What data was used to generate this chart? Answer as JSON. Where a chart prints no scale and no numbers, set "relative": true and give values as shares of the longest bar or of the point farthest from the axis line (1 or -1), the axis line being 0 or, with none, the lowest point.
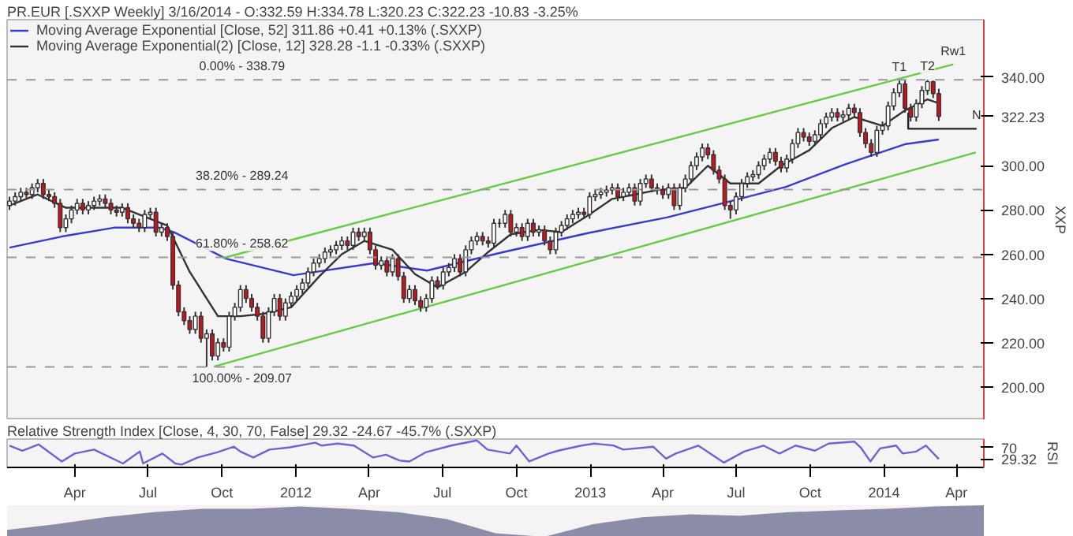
{
  "chart_data": [
    {
      "type": "candlestick",
      "title": "PR.EUR [.SXXP  Weekly] 3/16/2014 - O:332.59 H:334.78 L:320.23 C:322.23 -10.83 -3.25%",
      "ylabel": "XXP",
      "legend": "top left",
      "tick_labels": "y",
      "xlim": [
        "2011-01-07",
        "2014-05-05"
      ],
      "ylim": [
        185,
        366
      ],
      "yticks": [
        {
          "value": 200,
          "label": "200.00"
        },
        {
          "value": 220,
          "label": "220.00"
        },
        {
          "value": 240,
          "label": "240.00"
        },
        {
          "value": 260,
          "label": "260.00"
        },
        {
          "value": 280,
          "label": "280.00"
        },
        {
          "value": 300,
          "label": "300.00"
        },
        {
          "value": 322.23,
          "label": "322.23"
        },
        {
          "value": 340,
          "label": "340.00"
        }
      ],
      "x": [
        "2011-01-10",
        "2011-01-17",
        "2011-01-24",
        "2011-01-31",
        "2011-02-07",
        "2011-02-14",
        "2011-02-21",
        "2011-02-28",
        "2011-03-07",
        "2011-03-14",
        "2011-03-21",
        "2011-03-28",
        "2011-04-04",
        "2011-04-11",
        "2011-04-18",
        "2011-04-25",
        "2011-05-02",
        "2011-05-09",
        "2011-05-16",
        "2011-05-23",
        "2011-05-30",
        "2011-06-06",
        "2011-06-13",
        "2011-06-20",
        "2011-06-27",
        "2011-07-04",
        "2011-07-11",
        "2011-07-18",
        "2011-07-25",
        "2011-08-01",
        "2011-08-08",
        "2011-08-15",
        "2011-08-22",
        "2011-08-29",
        "2011-09-05",
        "2011-09-12",
        "2011-09-19",
        "2011-09-26",
        "2011-10-03",
        "2011-10-10",
        "2011-10-17",
        "2011-10-24",
        "2011-10-31",
        "2011-11-07",
        "2011-11-14",
        "2011-11-21",
        "2011-11-28",
        "2011-12-05",
        "2011-12-12",
        "2011-12-19",
        "2011-12-26",
        "2012-01-02",
        "2012-01-09",
        "2012-01-16",
        "2012-01-23",
        "2012-01-30",
        "2012-02-06",
        "2012-02-13",
        "2012-02-20",
        "2012-02-27",
        "2012-03-05",
        "2012-03-12",
        "2012-03-19",
        "2012-03-26",
        "2012-04-02",
        "2012-04-09",
        "2012-04-16",
        "2012-04-23",
        "2012-04-30",
        "2012-05-07",
        "2012-05-14",
        "2012-05-21",
        "2012-05-28",
        "2012-06-04",
        "2012-06-11",
        "2012-06-18",
        "2012-06-25",
        "2012-07-02",
        "2012-07-09",
        "2012-07-16",
        "2012-07-23",
        "2012-07-30",
        "2012-08-06",
        "2012-08-13",
        "2012-08-20",
        "2012-08-27",
        "2012-09-03",
        "2012-09-10",
        "2012-09-17",
        "2012-09-24",
        "2012-10-01",
        "2012-10-08",
        "2012-10-15",
        "2012-10-22",
        "2012-10-29",
        "2012-11-05",
        "2012-11-12",
        "2012-11-19",
        "2012-11-26",
        "2012-12-03",
        "2012-12-10",
        "2012-12-17",
        "2012-12-24",
        "2012-12-31",
        "2013-01-07",
        "2013-01-14",
        "2013-01-21",
        "2013-01-28",
        "2013-02-04",
        "2013-02-11",
        "2013-02-18",
        "2013-02-25",
        "2013-03-04",
        "2013-03-11",
        "2013-03-18",
        "2013-03-25",
        "2013-04-01",
        "2013-04-08",
        "2013-04-15",
        "2013-04-22",
        "2013-04-29",
        "2013-05-06",
        "2013-05-13",
        "2013-05-20",
        "2013-05-27",
        "2013-06-03",
        "2013-06-10",
        "2013-06-17",
        "2013-06-24",
        "2013-07-01",
        "2013-07-08",
        "2013-07-15",
        "2013-07-22",
        "2013-07-29",
        "2013-08-05",
        "2013-08-12",
        "2013-08-19",
        "2013-08-26",
        "2013-09-02",
        "2013-09-09",
        "2013-09-16",
        "2013-09-23",
        "2013-09-30",
        "2013-10-07",
        "2013-10-14",
        "2013-10-21",
        "2013-10-28",
        "2013-11-04",
        "2013-11-11",
        "2013-11-18",
        "2013-11-25",
        "2013-12-02",
        "2013-12-09",
        "2013-12-16",
        "2013-12-23",
        "2013-12-30",
        "2014-01-06",
        "2014-01-13",
        "2014-01-20",
        "2014-01-27",
        "2014-02-03",
        "2014-02-10",
        "2014-02-17",
        "2014-02-24",
        "2014-03-03",
        "2014-03-10"
      ],
      "ohlc": [
        [
          282,
          286,
          280,
          284
        ],
        [
          284,
          288,
          282,
          286
        ],
        [
          286,
          290,
          284,
          288
        ],
        [
          288,
          290,
          285,
          287
        ],
        [
          287,
          292,
          285,
          290
        ],
        [
          290,
          294,
          288,
          292
        ],
        [
          292,
          294,
          285,
          287
        ],
        [
          287,
          289,
          284,
          286
        ],
        [
          286,
          288,
          281,
          283
        ],
        [
          283,
          285,
          270,
          272
        ],
        [
          272,
          278,
          270,
          276
        ],
        [
          276,
          282,
          274,
          280
        ],
        [
          280,
          285,
          278,
          283
        ],
        [
          283,
          285,
          278,
          280
        ],
        [
          280,
          284,
          278,
          282
        ],
        [
          282,
          286,
          280,
          284
        ],
        [
          284,
          287,
          282,
          285
        ],
        [
          285,
          287,
          281,
          283
        ],
        [
          283,
          285,
          278,
          280
        ],
        [
          280,
          282,
          277,
          279
        ],
        [
          279,
          283,
          277,
          281
        ],
        [
          281,
          283,
          274,
          276
        ],
        [
          276,
          278,
          272,
          274
        ],
        [
          274,
          276,
          270,
          272
        ],
        [
          272,
          280,
          270,
          278
        ],
        [
          278,
          281,
          276,
          279
        ],
        [
          279,
          281,
          268,
          270
        ],
        [
          270,
          274,
          268,
          272
        ],
        [
          272,
          274,
          266,
          268
        ],
        [
          268,
          270,
          244,
          246
        ],
        [
          246,
          248,
          232,
          234
        ],
        [
          234,
          236,
          228,
          230
        ],
        [
          230,
          232,
          224,
          226
        ],
        [
          226,
          234,
          224,
          232
        ],
        [
          232,
          234,
          220,
          222
        ],
        [
          222,
          226,
          209.07,
          224
        ],
        [
          224,
          226,
          212,
          214
        ],
        [
          214,
          222,
          212,
          220
        ],
        [
          220,
          222,
          216,
          218
        ],
        [
          218,
          234,
          216,
          232
        ],
        [
          232,
          238,
          230,
          236
        ],
        [
          236,
          246,
          234,
          244
        ],
        [
          244,
          246,
          238,
          240
        ],
        [
          240,
          242,
          234,
          236
        ],
        [
          236,
          238,
          230,
          232
        ],
        [
          232,
          234,
          220,
          222
        ],
        [
          222,
          236,
          220,
          234
        ],
        [
          234,
          242,
          232,
          240
        ],
        [
          240,
          242,
          230,
          232
        ],
        [
          232,
          240,
          230,
          238
        ],
        [
          238,
          243,
          236,
          241
        ],
        [
          241,
          246,
          239,
          244
        ],
        [
          244,
          249,
          242,
          247
        ],
        [
          247,
          254,
          245,
          252
        ],
        [
          252,
          258,
          250,
          256
        ],
        [
          256,
          260,
          254,
          258
        ],
        [
          258,
          263,
          256,
          261
        ],
        [
          261,
          264,
          259,
          262
        ],
        [
          262,
          266,
          260,
          264
        ],
        [
          264,
          268,
          262,
          266
        ],
        [
          266,
          268,
          262,
          264
        ],
        [
          264,
          272,
          262,
          270
        ],
        [
          270,
          272,
          266,
          268
        ],
        [
          268,
          272,
          266,
          270
        ],
        [
          270,
          272,
          260,
          262
        ],
        [
          262,
          264,
          253,
          255
        ],
        [
          255,
          259,
          253,
          257
        ],
        [
          257,
          259,
          250,
          252
        ],
        [
          252,
          260,
          250,
          258
        ],
        [
          258,
          260,
          248,
          250
        ],
        [
          250,
          252,
          238,
          240
        ],
        [
          240,
          246,
          238,
          244
        ],
        [
          244,
          246,
          237,
          239
        ],
        [
          239,
          241,
          234,
          236
        ],
        [
          236,
          242,
          234,
          240
        ],
        [
          240,
          250,
          238,
          248
        ],
        [
          248,
          250,
          244,
          246
        ],
        [
          246,
          254,
          244,
          252
        ],
        [
          252,
          256,
          250,
          254
        ],
        [
          254,
          260,
          252,
          258
        ],
        [
          258,
          260,
          250,
          252
        ],
        [
          252,
          264,
          250,
          262
        ],
        [
          262,
          268,
          260,
          266
        ],
        [
          266,
          270,
          264,
          268
        ],
        [
          268,
          270,
          264,
          266
        ],
        [
          266,
          268,
          263,
          265
        ],
        [
          265,
          276,
          263,
          274
        ],
        [
          274,
          276,
          272,
          274
        ],
        [
          274,
          280,
          272,
          278
        ],
        [
          278,
          280,
          268,
          270
        ],
        [
          270,
          274,
          268,
          272
        ],
        [
          272,
          274,
          266,
          268
        ],
        [
          268,
          276,
          266,
          274
        ],
        [
          274,
          276,
          268,
          270
        ],
        [
          270,
          273,
          268,
          271
        ],
        [
          271,
          273,
          264,
          266
        ],
        [
          266,
          268,
          260,
          262
        ],
        [
          262,
          272,
          260,
          270
        ],
        [
          270,
          275,
          268,
          273
        ],
        [
          273,
          278,
          271,
          276
        ],
        [
          276,
          280,
          274,
          278
        ],
        [
          278,
          281,
          276,
          279
        ],
        [
          279,
          281,
          276,
          278
        ],
        [
          278,
          288,
          276,
          286
        ],
        [
          286,
          289,
          284,
          287
        ],
        [
          287,
          290,
          285,
          288
        ],
        [
          288,
          291,
          286,
          289
        ],
        [
          289,
          292,
          287,
          290
        ],
        [
          290,
          292,
          284,
          286
        ],
        [
          286,
          290,
          284,
          288
        ],
        [
          288,
          292,
          286,
          290
        ],
        [
          290,
          292,
          282,
          284
        ],
        [
          284,
          294,
          282,
          292
        ],
        [
          292,
          296,
          290,
          294
        ],
        [
          294,
          296,
          288,
          290
        ],
        [
          290,
          292,
          287,
          289
        ],
        [
          289,
          291,
          285,
          287
        ],
        [
          287,
          292,
          285,
          290
        ],
        [
          290,
          292,
          280,
          282
        ],
        [
          282,
          292,
          280,
          290
        ],
        [
          290,
          296,
          288,
          294
        ],
        [
          294,
          302,
          292,
          300
        ],
        [
          300,
          306,
          298,
          304
        ],
        [
          304,
          310,
          302,
          308
        ],
        [
          308,
          310,
          303,
          305
        ],
        [
          305,
          307,
          296,
          298
        ],
        [
          298,
          300,
          292,
          294
        ],
        [
          294,
          296,
          280,
          282
        ],
        [
          282,
          284,
          276,
          280
        ],
        [
          280,
          288,
          278,
          286
        ],
        [
          286,
          294,
          284,
          292
        ],
        [
          292,
          297,
          290,
          295
        ],
        [
          295,
          298,
          293,
          296
        ],
        [
          296,
          302,
          294,
          300
        ],
        [
          300,
          305,
          298,
          303
        ],
        [
          303,
          308,
          301,
          306
        ],
        [
          306,
          308,
          300,
          302
        ],
        [
          302,
          304,
          297,
          299
        ],
        [
          299,
          305,
          297,
          303
        ],
        [
          303,
          312,
          301,
          310
        ],
        [
          310,
          317,
          308,
          315
        ],
        [
          315,
          317,
          311,
          313
        ],
        [
          313,
          315,
          309,
          311
        ],
        [
          311,
          316,
          309,
          314
        ],
        [
          314,
          321,
          312,
          319
        ],
        [
          319,
          324,
          317,
          322
        ],
        [
          322,
          326,
          320,
          324
        ],
        [
          324,
          326,
          320,
          322
        ],
        [
          322,
          325,
          320,
          323
        ],
        [
          323,
          328,
          321,
          326
        ],
        [
          326,
          328,
          322,
          324
        ],
        [
          324,
          326,
          313,
          315
        ],
        [
          315,
          317,
          308,
          310
        ],
        [
          310,
          312,
          304,
          306
        ],
        [
          306,
          318,
          304,
          316
        ],
        [
          316,
          320,
          314,
          318
        ],
        [
          318,
          329,
          316,
          327
        ],
        [
          327,
          335,
          325,
          333
        ],
        [
          333,
          338.5,
          331,
          337
        ],
        [
          337,
          338.5,
          324,
          326
        ],
        [
          326,
          328,
          320,
          322
        ],
        [
          322,
          330,
          320,
          328
        ],
        [
          328,
          336,
          326,
          334
        ],
        [
          334,
          338.79,
          332,
          338
        ],
        [
          338,
          338.5,
          330.59,
          332.59
        ],
        [
          332.59,
          334.78,
          320.23,
          322.23
        ]
      ],
      "series": [
        {
          "type": "line",
          "name": "Moving Average Exponential [Close, 52] 311.86 +0.41 +0.13% (.SXXP)",
          "color": "#3a3ad0",
          "x": [
            "2011-01-10",
            "2011-03-16",
            "2011-05-20",
            "2011-07-15",
            "2011-08-02",
            "2011-10-06",
            "2011-12-29",
            "2012-04-08",
            "2012-06-12",
            "2012-09-13",
            "2013-01-01",
            "2013-04-06",
            "2013-06-19",
            "2013-09-01",
            "2013-11-14",
            "2014-01-28",
            "2014-03-10"
          ],
          "values": [
            263,
            268,
            272,
            272,
            270,
            258,
            250.5,
            256,
            252.6,
            260.8,
            269.8,
            276.6,
            283.5,
            290.4,
            300.7,
            309.8,
            311.86
          ]
        },
        {
          "type": "line",
          "name": "Moving Average Exponential(2) [Close, 12] 328.28 -1.1 -0.33% (.SXXP)",
          "color": "#333333",
          "x": [
            "2011-01-10",
            "2011-02-14",
            "2011-03-21",
            "2011-04-25",
            "2011-05-30",
            "2011-06-27",
            "2011-07-25",
            "2011-08-22",
            "2011-09-26",
            "2011-10-24",
            "2011-11-21",
            "2011-12-26",
            "2012-01-30",
            "2012-02-27",
            "2012-03-26",
            "2012-04-30",
            "2012-05-28",
            "2012-06-25",
            "2012-07-30",
            "2012-08-27",
            "2012-09-24",
            "2012-10-29",
            "2012-11-26",
            "2012-12-31",
            "2013-01-28",
            "2013-02-25",
            "2013-03-25",
            "2013-04-29",
            "2013-05-27",
            "2013-06-24",
            "2013-07-29",
            "2013-08-26",
            "2013-09-30",
            "2013-10-28",
            "2013-11-25",
            "2013-12-30",
            "2014-01-27",
            "2014-02-24",
            "2014-03-10"
          ],
          "values": [
            282,
            287,
            281,
            281,
            281,
            277,
            273,
            252,
            232,
            232,
            233,
            236,
            250,
            260,
            266,
            262,
            251,
            245,
            252,
            261,
            269,
            271,
            270,
            278,
            285,
            287,
            289,
            290,
            300,
            292,
            292,
            300,
            307,
            317,
            322,
            318,
            325,
            330,
            328.28
          ]
        },
        {
          "type": "line",
          "color": "#66cc44",
          "x": [
            "2011-10-03",
            "2014-03-28"
          ],
          "values": [
            258.3,
            345.8
          ]
        },
        {
          "type": "line",
          "color": "#66cc44",
          "x": [
            "2011-09-21",
            "2014-04-25"
          ],
          "values": [
            209.2,
            306
          ]
        },
        {
          "type": "line",
          "color": "#222222",
          "x": [
            "2014-01-31",
            "2014-01-31",
            "2014-04-26"
          ],
          "values": [
            324,
            316.7,
            316.7
          ]
        }
      ],
      "ref_lines": [
        {
          "axis": "y",
          "value": 338.79,
          "color": "#999999",
          "line_style": "dashed"
        },
        {
          "axis": "y",
          "value": 289.24,
          "color": "#999999",
          "line_style": "dashed"
        },
        {
          "axis": "y",
          "value": 258.62,
          "color": "#999999",
          "line_style": "dashed"
        },
        {
          "axis": "y",
          "value": 209.07,
          "color": "#999999",
          "line_style": "dashed"
        }
      ],
      "annotations": [
        {
          "text": "0.00% - 338.79",
          "x": "2011-10-26",
          "y": 338.79
        },
        {
          "text": "38.20% - 289.24",
          "x": "2011-10-26",
          "y": 289.24
        },
        {
          "text": "61.80% - 258.62",
          "x": "2011-10-26",
          "y": 258.62
        },
        {
          "text": "100.00% - 209.07",
          "x": "2011-10-26",
          "y": 209.07
        },
        {
          "text": "T1",
          "x": "2014-01-20",
          "y": 338.5
        },
        {
          "text": "T2",
          "x": "2014-02-24",
          "y": 338.79
        },
        {
          "text": "Rw1",
          "x": "2014-03-28",
          "y": 345.8
        },
        {
          "text": "N",
          "x": "2014-04-26",
          "y": 316.7
        }
      ]
    },
    {
      "type": "line",
      "title": "Relative Strength Index [Close, 4, 30, 70, False] 29.32 -24.67 -45.7% (.SXXP)",
      "ylabel": "RSI",
      "color": "#6b63d6",
      "xlim": [
        "2011-01-07",
        "2014-05-05"
      ],
      "ylim": [
        0,
        100
      ],
      "yticks": [
        70,
        29.32
      ],
      "xticks": [
        {
          "value": "2011-04-01",
          "label": "Apr"
        },
        {
          "value": "2011-07-01",
          "label": "Jul"
        },
        {
          "value": "2011-10-01",
          "label": "Oct"
        },
        {
          "value": "2012-01-01",
          "label": "2012"
        },
        {
          "value": "2012-04-01",
          "label": "Apr"
        },
        {
          "value": "2012-07-01",
          "label": "Jul"
        },
        {
          "value": "2012-10-01",
          "label": "Oct"
        },
        {
          "value": "2013-01-01",
          "label": "2013"
        },
        {
          "value": "2013-04-01",
          "label": "Apr"
        },
        {
          "value": "2013-07-01",
          "label": "Jul"
        },
        {
          "value": "2013-10-01",
          "label": "Oct"
        },
        {
          "value": "2014-01-01",
          "label": "2014"
        },
        {
          "value": "2014-04-01",
          "label": "Apr"
        }
      ],
      "x": [
        "2011-01-10",
        "2011-01-26",
        "2011-02-15",
        "2011-03-16",
        "2011-04-01",
        "2011-04-25",
        "2011-05-31",
        "2011-06-21",
        "2011-06-25",
        "2011-07-19",
        "2011-08-04",
        "2011-08-12",
        "2011-09-01",
        "2011-09-25",
        "2011-10-16",
        "2011-10-24",
        "2011-11-09",
        "2011-11-29",
        "2011-12-23",
        "2012-01-25",
        "2012-02-02",
        "2012-02-22",
        "2012-03-13",
        "2012-04-06",
        "2012-04-22",
        "2012-05-09",
        "2012-05-21",
        "2012-06-10",
        "2012-07-12",
        "2012-08-13",
        "2012-08-26",
        "2012-09-23",
        "2012-10-01",
        "2012-10-17",
        "2012-11-10",
        "2012-11-22",
        "2012-12-21",
        "2013-01-06",
        "2013-01-30",
        "2013-02-11",
        "2013-03-20",
        "2013-04-05",
        "2013-04-17",
        "2013-05-15",
        "2013-06-16",
        "2013-07-11",
        "2013-08-04",
        "2013-08-24",
        "2013-09-13",
        "2013-10-07",
        "2013-10-24",
        "2013-11-25",
        "2013-12-03",
        "2013-12-15",
        "2013-12-27",
        "2014-01-16",
        "2014-01-24",
        "2014-02-10",
        "2014-02-22",
        "2014-03-10"
      ],
      "values": [
        77,
        59,
        81,
        21,
        49,
        63,
        14,
        56,
        14,
        49,
        14,
        10,
        35,
        53,
        73,
        56,
        35,
        63,
        70,
        87,
        77,
        84,
        77,
        35,
        45,
        24,
        21,
        53,
        77,
        95,
        63,
        49,
        77,
        21,
        49,
        59,
        77,
        84,
        77,
        63,
        73,
        31,
        49,
        77,
        17,
        56,
        77,
        49,
        77,
        59,
        84,
        91,
        70,
        21,
        67,
        77,
        49,
        56,
        77,
        29.32
      ]
    },
    {
      "type": "area",
      "relative": true,
      "tick_labels": false,
      "color": "#8c8ca8",
      "categories": [
        null,
        null,
        null,
        null,
        null,
        null,
        null,
        null,
        null,
        null,
        null,
        null,
        null,
        null,
        null,
        null,
        null,
        null,
        null,
        null,
        null
      ],
      "values": [
        0.22,
        0.4,
        0.62,
        0.78,
        0.89,
        0.89,
        0.96,
        0.89,
        0.78,
        0.56,
        0.11,
        0,
        0.4,
        0.62,
        0.71,
        0.67,
        0.78,
        0.84,
        0.89,
        0.96,
        1
      ]
    }
  ]
}
